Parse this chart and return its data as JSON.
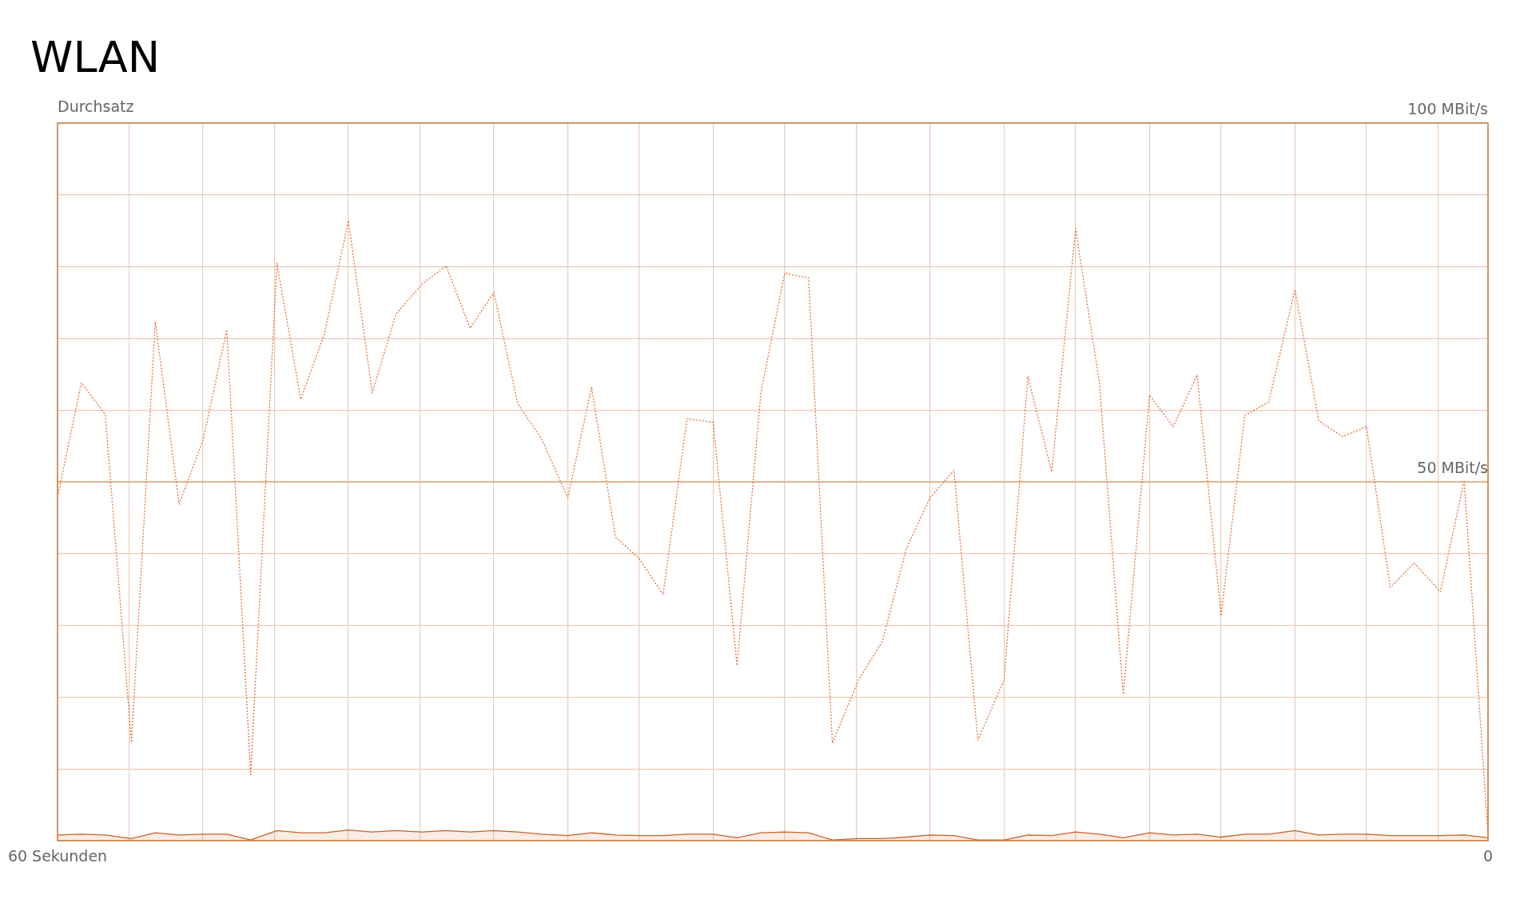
{
  "chart_data": {
    "type": "line",
    "title": "WLAN",
    "ylabel": "Durchsatz",
    "x": [
      60.0,
      59.0,
      58.0,
      56.9,
      55.9,
      54.9,
      53.9,
      52.9,
      51.9,
      50.8,
      49.8,
      48.8,
      47.8,
      46.8,
      45.8,
      44.7,
      43.7,
      42.7,
      41.7,
      40.7,
      39.7,
      38.6,
      37.6,
      36.6,
      35.6,
      34.6,
      33.6,
      32.5,
      31.5,
      30.5,
      29.5,
      28.5,
      27.5,
      26.4,
      25.4,
      24.4,
      23.4,
      22.4,
      21.4,
      20.3,
      19.3,
      18.3,
      17.3,
      16.3,
      15.3,
      14.2,
      13.2,
      12.2,
      11.2,
      10.2,
      9.2,
      8.1,
      7.1,
      6.1,
      5.1,
      4.1,
      3.1,
      2.0,
      1.0,
      0.0
    ],
    "series": [
      {
        "color": "#e8703a",
        "line_style": "dotted",
        "values": [
          47.9,
          63.8,
          59.4,
          13.7,
          72.3,
          46.9,
          55.8,
          71.2,
          9.2,
          80.5,
          61.5,
          70.7,
          86.4,
          62.4,
          73.4,
          77.6,
          80.1,
          71.4,
          76.4,
          60.9,
          56.0,
          47.8,
          63.2,
          42.3,
          39.3,
          34.3,
          58.8,
          58.3,
          24.4,
          62.4,
          79.1,
          78.4,
          13.6,
          22.4,
          27.8,
          40.7,
          47.8,
          51.6,
          14.0,
          22.4,
          64.7,
          51.4,
          85.3,
          63.8,
          20.4,
          62.1,
          57.7,
          64.9,
          31.3,
          59.3,
          61.1,
          76.8,
          58.5,
          56.3,
          57.7,
          35.3,
          38.7,
          34.7,
          50.2,
          0.7
        ]
      },
      {
        "type": "area",
        "color": "#c8622a",
        "line_style": "solid",
        "values": [
          0.8,
          0.9,
          0.8,
          0.3,
          1.1,
          0.8,
          0.9,
          0.9,
          0.1,
          1.4,
          1.1,
          1.1,
          1.5,
          1.2,
          1.4,
          1.2,
          1.4,
          1.2,
          1.4,
          1.2,
          0.9,
          0.7,
          1.1,
          0.8,
          0.7,
          0.7,
          0.9,
          0.9,
          0.4,
          1.1,
          1.2,
          1.1,
          0.1,
          0.3,
          0.3,
          0.5,
          0.8,
          0.7,
          0.1,
          0.1,
          0.8,
          0.7,
          1.2,
          0.9,
          0.4,
          1.1,
          0.8,
          0.9,
          0.5,
          0.9,
          0.9,
          1.4,
          0.8,
          0.9,
          0.9,
          0.7,
          0.7,
          0.7,
          0.8,
          0.4
        ]
      }
    ],
    "xlim": [
      60,
      0
    ],
    "xticks": [
      {
        "value": 60,
        "label": "60 Sekunden"
      },
      {
        "value": 57.0,
        "label": null
      },
      {
        "value": 53.9,
        "label": null
      },
      {
        "value": 50.9,
        "label": null
      },
      {
        "value": 47.8,
        "label": null
      },
      {
        "value": 44.8,
        "label": null
      },
      {
        "value": 41.7,
        "label": null
      },
      {
        "value": 38.6,
        "label": null
      },
      {
        "value": 35.6,
        "label": null
      },
      {
        "value": 32.5,
        "label": null
      },
      {
        "value": 29.5,
        "label": null
      },
      {
        "value": 26.5,
        "label": null
      },
      {
        "value": 23.4,
        "label": null
      },
      {
        "value": 20.3,
        "label": null
      },
      {
        "value": 17.3,
        "label": null
      },
      {
        "value": 14.2,
        "label": null
      },
      {
        "value": 11.2,
        "label": null
      },
      {
        "value": 8.1,
        "label": null
      },
      {
        "value": 5.1,
        "label": null
      },
      {
        "value": 2.1,
        "label": null
      },
      {
        "value": 0,
        "label": "0"
      }
    ],
    "ylim": [
      0,
      100
    ],
    "yticks": [
      {
        "value": 0,
        "label": null
      },
      {
        "value": 10,
        "label": null
      },
      {
        "value": 20,
        "label": null
      },
      {
        "value": 30,
        "label": null
      },
      {
        "value": 40,
        "label": null
      },
      {
        "value": 50,
        "label": "50 MBit/s"
      },
      {
        "value": 60,
        "label": null
      },
      {
        "value": 70,
        "label": null
      },
      {
        "value": 80,
        "label": null
      },
      {
        "value": 90,
        "label": null
      },
      {
        "value": 100,
        "label": "100 MBit/s"
      }
    ],
    "ref_lines": [
      {
        "axis": "y",
        "value": 50,
        "color": "#dcaa80"
      }
    ],
    "grid": true,
    "marker": "none",
    "legend": false
  }
}
